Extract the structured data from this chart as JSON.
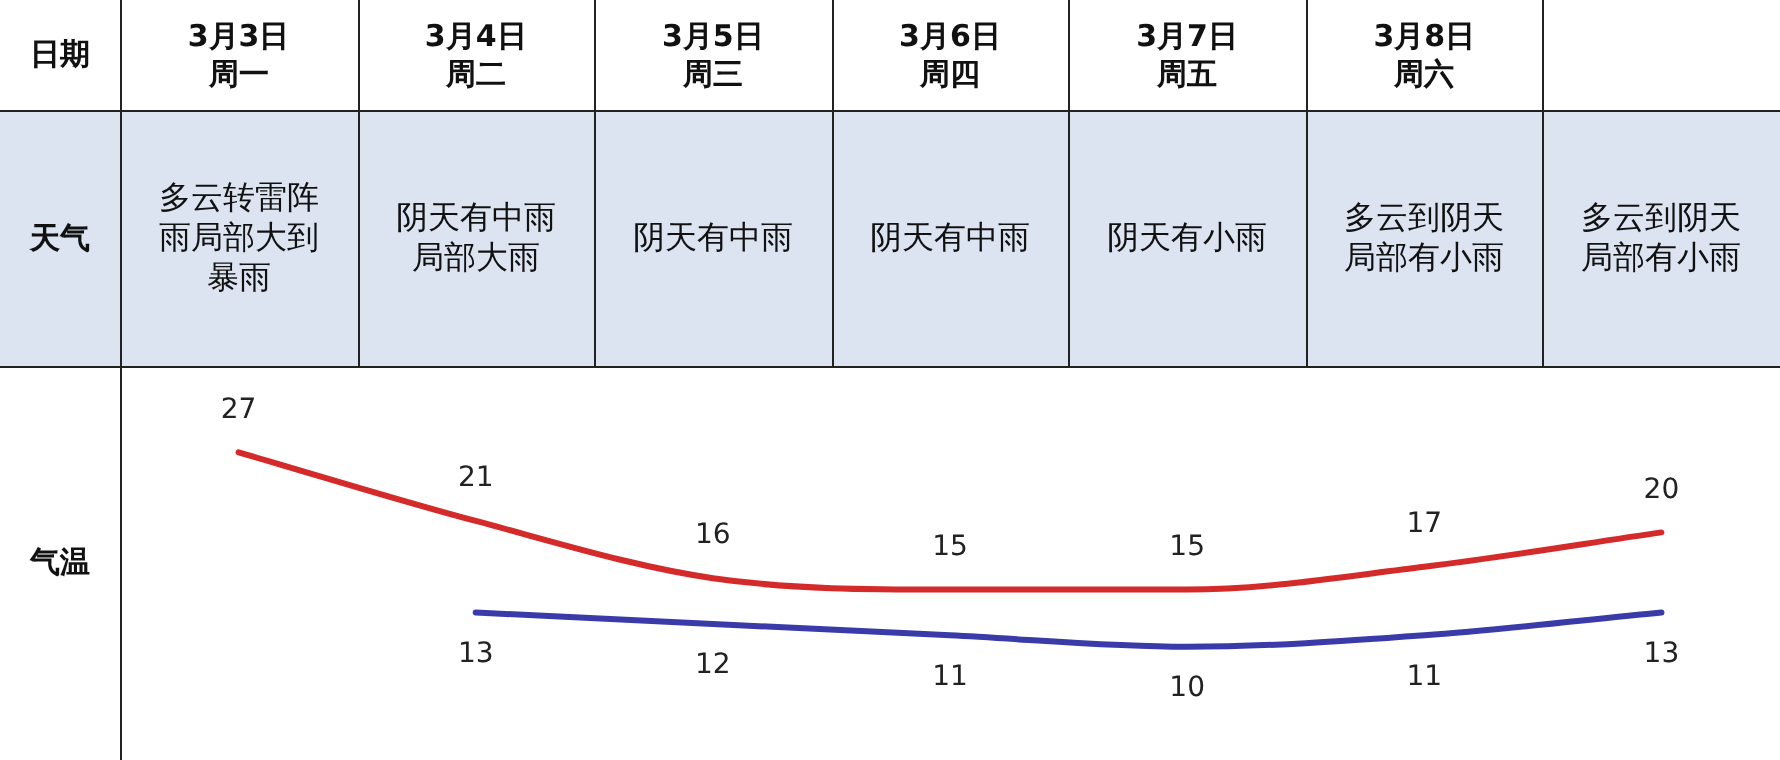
{
  "chart_data": {
    "type": "line",
    "xlabel": "日期",
    "ylabel": "气温",
    "categories": [
      "3月3日周一",
      "3月4日周二",
      "3月5日周三",
      "3月6日周四",
      "3月7日周五",
      "3月8日周六",
      null
    ],
    "series": [
      {
        "color": "#d42a2a",
        "values": [
          27,
          21,
          16,
          15,
          15,
          17,
          20
        ]
      },
      {
        "color": "#3a3aa8",
        "values": [
          null,
          13,
          12,
          11,
          10,
          11,
          13
        ]
      }
    ],
    "annotations": [
      "天气",
      "多云转雷阵雨局部大到暴雨",
      "阴天有中雨局部大雨",
      "阴天有中雨",
      "阴天有中雨",
      "阴天有小雨",
      "多云到阴天局部有小雨",
      "多云到阴天局部有小雨"
    ],
    "data_labels": true,
    "legend": false,
    "marker": "none",
    "line_style": "solid"
  }
}
